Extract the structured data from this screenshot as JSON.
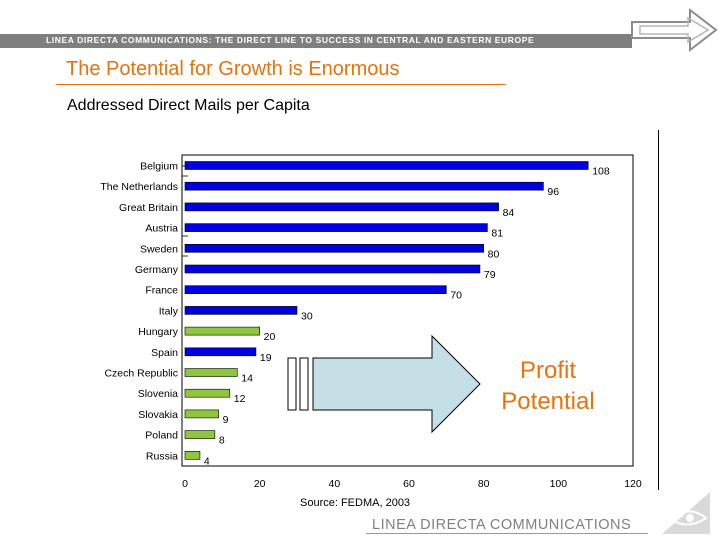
{
  "header": {
    "tagline": "LINEA DIRECTA COMMUNICATIONS: THE DIRECT LINE TO SUCCESS IN CENTRAL AND EASTERN EUROPE"
  },
  "page": {
    "title": "The Potential for Growth is Enormous",
    "subtitle": "Addressed Direct Mails per Capita"
  },
  "callout": {
    "line1": "Profit",
    "line2": "Potential"
  },
  "source": "Source: FEDMA, 2003",
  "footer": {
    "brand": "LINEA DIRECTA COMMUNICATIONS"
  },
  "colors": {
    "accent": "#e8720c",
    "blue": "#0000e0",
    "green": "#8ec63f",
    "arrow_fill": "#c4dfe6",
    "header_gray": "#7f7f7f"
  },
  "icons": {
    "nav": "forward-arrow-icon",
    "logo": "eye-logo-icon"
  },
  "chart_data": {
    "type": "bar",
    "orientation": "horizontal",
    "title": "Addressed Direct Mails per Capita",
    "categories": [
      "Belgium",
      "The Netherlands",
      "Great Britain",
      "Austria",
      "Sweden",
      "Germany",
      "France",
      "Italy",
      "Hungary",
      "Spain",
      "Czech Republic",
      "Slovenia",
      "Slovakia",
      "Poland",
      "Russia"
    ],
    "values": [
      108,
      96,
      84,
      81,
      80,
      79,
      70,
      30,
      20,
      19,
      14,
      12,
      9,
      8,
      4
    ],
    "group": [
      "western",
      "western",
      "western",
      "western",
      "western",
      "western",
      "western",
      "western",
      "cee",
      "western",
      "cee",
      "cee",
      "cee",
      "cee",
      "cee"
    ],
    "xlim": [
      0,
      120
    ],
    "xticks": [
      0,
      20,
      40,
      60,
      80,
      100,
      120
    ],
    "xlabel": "",
    "ylabel": "",
    "grid": false
  }
}
